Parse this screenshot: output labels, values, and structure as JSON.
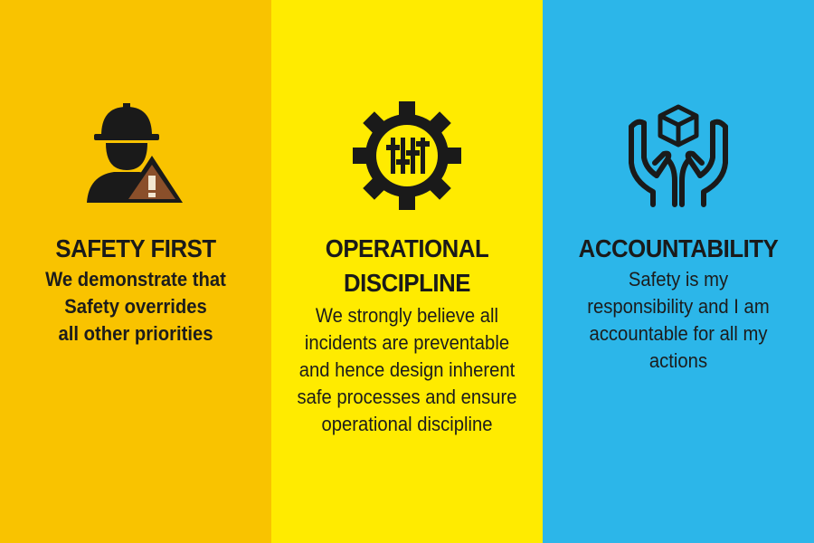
{
  "panels": [
    {
      "icon": "worker-with-warning-icon",
      "title_lines": [
        "SAFETY FIRST"
      ],
      "desc_lines": [
        "We demonstrate that",
        "Safety overrides",
        "all other priorities"
      ],
      "bg": "#f9c300"
    },
    {
      "icon": "gear-with-sliders-icon",
      "title_lines": [
        "OPERATIONAL",
        "DISCIPLINE"
      ],
      "desc_lines": [
        "We strongly believe all",
        "incidents are preventable",
        "and hence design inherent",
        "safe processes and ensure",
        "operational discipline"
      ],
      "bg": "#ffeb00"
    },
    {
      "icon": "hands-holding-cube-icon",
      "title_lines": [
        "ACCOUNTABILITY"
      ],
      "desc_lines": [
        "Safety is my",
        "responsibility and I am",
        "accountable for all my",
        "actions"
      ],
      "bg": "#2cb6e9"
    }
  ]
}
